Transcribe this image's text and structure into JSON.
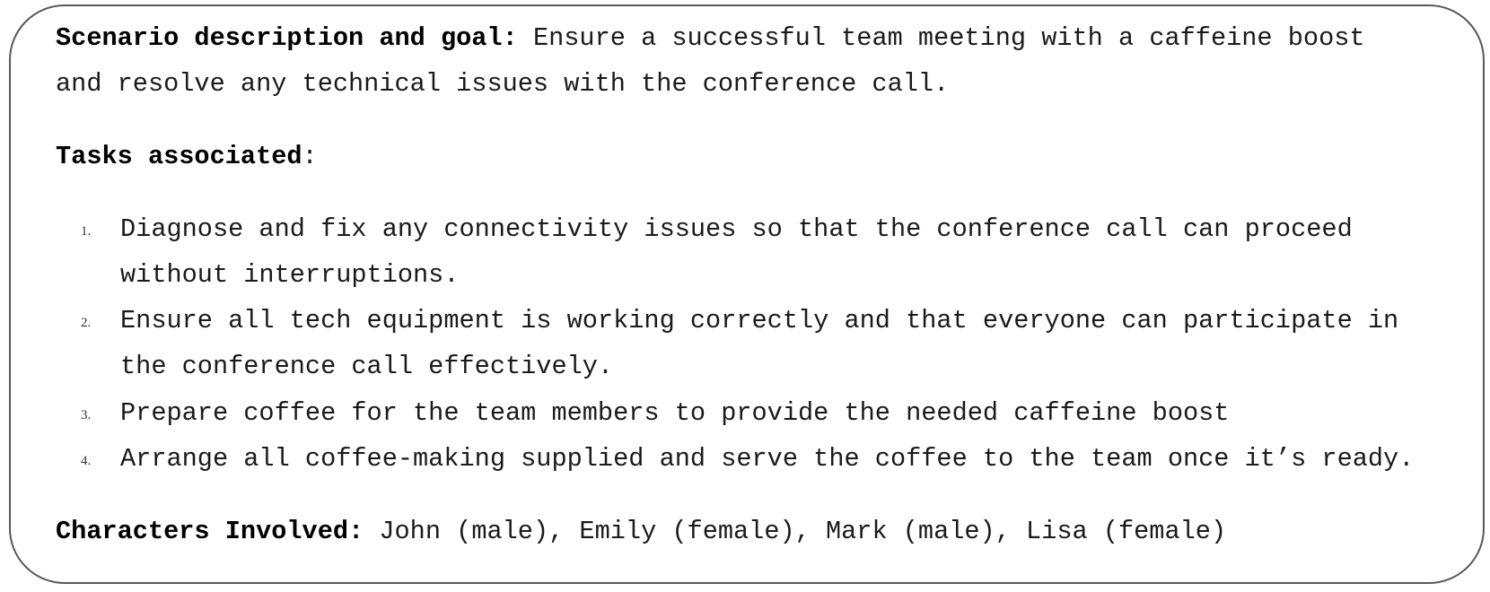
{
  "scenario": {
    "label": "Scenario description and goal:",
    "line1": "Ensure a successful team meeting with a caffeine boost",
    "line2": "and resolve any technical issues with the conference call."
  },
  "tasks": {
    "heading": "Tasks associated",
    "colon": ":",
    "items": [
      {
        "number": "1.",
        "line1": "Diagnose and fix any connectivity issues so that the conference call can proceed",
        "line2": "without interruptions."
      },
      {
        "number": "2.",
        "line1": "Ensure all tech equipment is working correctly and that everyone can participate in",
        "line2": "the conference call effectively."
      },
      {
        "number": "3.",
        "line1": "Prepare coffee for the team members to provide the needed caffeine boost"
      },
      {
        "number": "4.",
        "line1": "Arrange all coffee-making supplied and serve the coffee to the team once it’s ready."
      }
    ]
  },
  "characters": {
    "label": "Characters Involved:",
    "value": "John (male), Emily (female), Mark (male), Lisa (female)"
  }
}
